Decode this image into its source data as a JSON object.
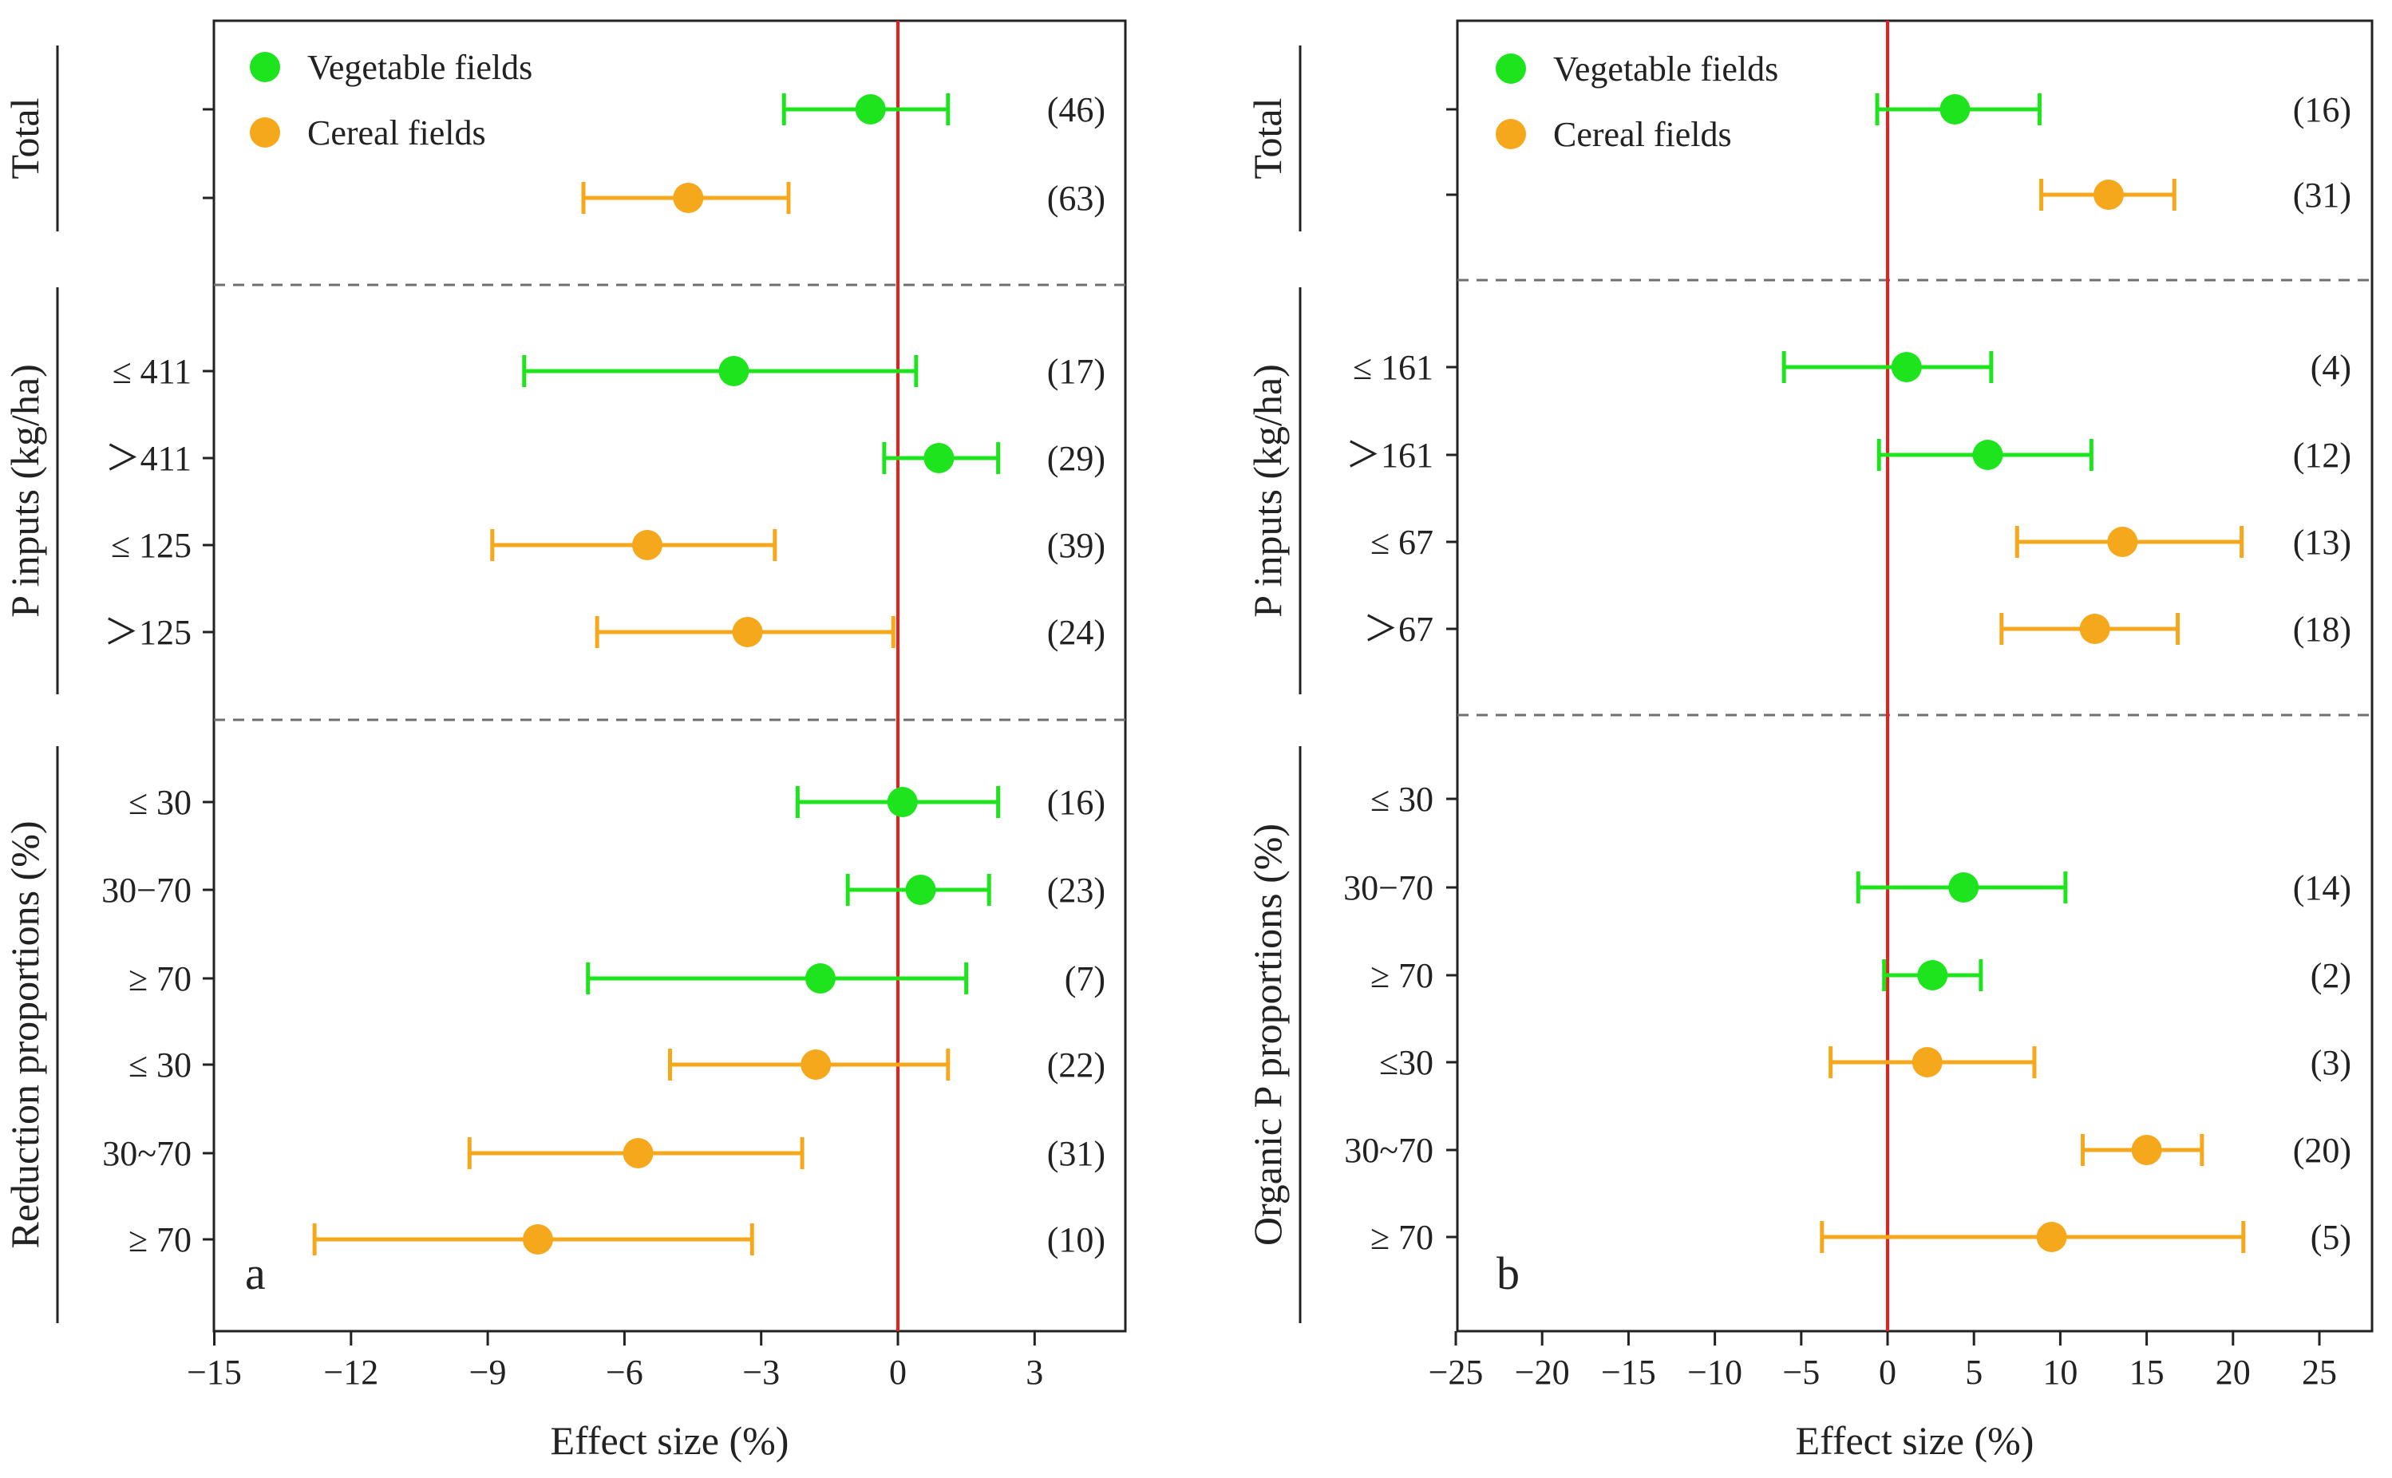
{
  "colors": {
    "vegetable": "#1ee41e",
    "cereal": "#f5a81c",
    "zero_line": "#ee1c1c",
    "divider": "#6f6f6f",
    "axis": "#222222"
  },
  "chart_data": [
    {
      "type": "forest",
      "panel": "a",
      "xlabel": "Effect size (%)",
      "xlim": [
        -15,
        5
      ],
      "xticks": [
        -15,
        -12,
        -9,
        -6,
        -3,
        0,
        3
      ],
      "xtick_labels": [
        "−15",
        "−12",
        "−9",
        "−6",
        "−3",
        "0",
        "3"
      ],
      "legend": [
        {
          "name": "Vegetable fields",
          "color": "vegetable"
        },
        {
          "name": "Cereal fields",
          "color": "cereal"
        }
      ],
      "groups": [
        {
          "label": "Total",
          "rows": [
            {
              "label": "",
              "series": "vegetable",
              "mean": -0.6,
              "lo": -2.5,
              "hi": 1.1,
              "n": "(46)"
            },
            {
              "label": "",
              "series": "cereal",
              "mean": -4.6,
              "lo": -6.9,
              "hi": -2.4,
              "n": "(63)"
            }
          ]
        },
        {
          "label": "P inputs (kg/ha)",
          "rows": [
            {
              "label": "≤ 411",
              "series": "vegetable",
              "mean": -3.6,
              "lo": -8.2,
              "hi": 0.4,
              "n": "(17)"
            },
            {
              "label": "＞411",
              "series": "vegetable",
              "mean": 0.9,
              "lo": -0.3,
              "hi": 2.2,
              "n": "(29)"
            },
            {
              "label": "≤ 125",
              "series": "cereal",
              "mean": -5.5,
              "lo": -8.9,
              "hi": -2.7,
              "n": "(39)"
            },
            {
              "label": "＞125",
              "series": "cereal",
              "mean": -3.3,
              "lo": -6.6,
              "hi": -0.1,
              "n": "(24)"
            }
          ]
        },
        {
          "label": "Reduction proportions (%)",
          "rows": [
            {
              "label": "≤ 30",
              "series": "vegetable",
              "mean": 0.1,
              "lo": -2.2,
              "hi": 2.2,
              "n": "(16)"
            },
            {
              "label": "30−70",
              "series": "vegetable",
              "mean": 0.5,
              "lo": -1.1,
              "hi": 2.0,
              "n": "(23)"
            },
            {
              "label": "≥ 70",
              "series": "vegetable",
              "mean": -1.7,
              "lo": -6.8,
              "hi": 1.5,
              "n": "(7)"
            },
            {
              "label": "≤ 30",
              "series": "cereal",
              "mean": -1.8,
              "lo": -5.0,
              "hi": 1.1,
              "n": "(22)"
            },
            {
              "label": "30~70",
              "series": "cereal",
              "mean": -5.7,
              "lo": -9.4,
              "hi": -2.1,
              "n": "(31)"
            },
            {
              "label": "≥ 70",
              "series": "cereal",
              "mean": -7.9,
              "lo": -12.8,
              "hi": -3.2,
              "n": "(10)"
            }
          ]
        }
      ]
    },
    {
      "type": "forest",
      "panel": "b",
      "xlabel": "Effect size (%)",
      "xlim": [
        -25,
        27
      ],
      "xticks": [
        -25,
        -20,
        -15,
        -10,
        -5,
        0,
        5,
        10,
        15,
        20,
        25
      ],
      "xtick_labels": [
        "−25",
        "−20",
        "−15",
        "−10",
        "−5",
        "0",
        "5",
        "10",
        "15",
        "20",
        "25"
      ],
      "legend": [
        {
          "name": "Vegetable fields",
          "color": "vegetable"
        },
        {
          "name": "Cereal fields",
          "color": "cereal"
        }
      ],
      "groups": [
        {
          "label": "Total",
          "rows": [
            {
              "label": "",
              "series": "vegetable",
              "mean": 3.9,
              "lo": -0.6,
              "hi": 8.8,
              "n": "(16)"
            },
            {
              "label": "",
              "series": "cereal",
              "mean": 12.8,
              "lo": 8.9,
              "hi": 16.6,
              "n": "(31)"
            }
          ]
        },
        {
          "label": "P inputs (kg/ha)",
          "rows": [
            {
              "label": "≤ 161",
              "series": "vegetable",
              "mean": 1.1,
              "lo": -6.0,
              "hi": 6.0,
              "n": "(4)"
            },
            {
              "label": "＞161",
              "series": "vegetable",
              "mean": 5.8,
              "lo": -0.5,
              "hi": 11.8,
              "n": "(12)"
            },
            {
              "label": "≤ 67",
              "series": "cereal",
              "mean": 13.6,
              "lo": 7.5,
              "hi": 20.5,
              "n": "(13)"
            },
            {
              "label": "＞67",
              "series": "cereal",
              "mean": 12.0,
              "lo": 6.6,
              "hi": 16.8,
              "n": "(18)"
            }
          ]
        },
        {
          "label": "Organic P proportions (%)",
          "rows": [
            {
              "label": "≤ 30",
              "series": "vegetable",
              "mean": null,
              "lo": null,
              "hi": null,
              "n": ""
            },
            {
              "label": "30−70",
              "series": "vegetable",
              "mean": 4.4,
              "lo": -1.7,
              "hi": 10.3,
              "n": "(14)"
            },
            {
              "label": "≥ 70",
              "series": "vegetable",
              "mean": 2.6,
              "lo": -0.2,
              "hi": 5.4,
              "n": "(2)"
            },
            {
              "label": "≤30",
              "series": "cereal",
              "mean": 2.3,
              "lo": -3.3,
              "hi": 8.5,
              "n": "(3)"
            },
            {
              "label": "30~70",
              "series": "cereal",
              "mean": 15.0,
              "lo": 11.3,
              "hi": 18.2,
              "n": "(20)"
            },
            {
              "label": "≥ 70",
              "series": "cereal",
              "mean": 9.5,
              "lo": -3.8,
              "hi": 20.6,
              "n": "(5)"
            }
          ]
        }
      ]
    }
  ]
}
